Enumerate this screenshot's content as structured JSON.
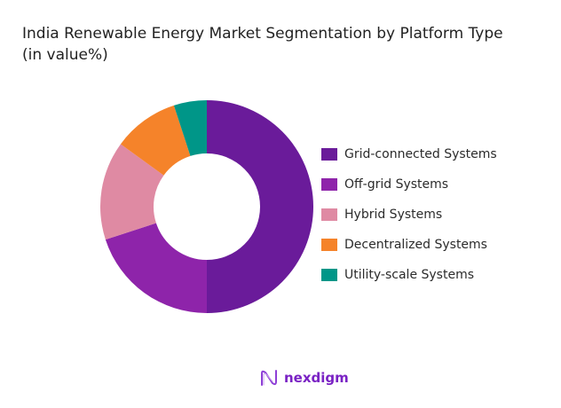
{
  "title": {
    "line1": "India Renewable Energy Market Segmentation by Platform Type",
    "line2": "(in value%)"
  },
  "chart_data": {
    "type": "pie",
    "variant": "donut",
    "title": "India Renewable Energy Market Segmentation by Platform Type (in value%)",
    "categories": [
      "Grid-connected Systems",
      "Off-grid Systems",
      "Hybrid Systems",
      "Decentralized Systems",
      "Utility-scale Systems"
    ],
    "values": [
      50,
      20,
      15,
      10,
      5
    ],
    "colors": [
      "#6a1b9a",
      "#8e24aa",
      "#df8aa3",
      "#f5832a",
      "#009688"
    ],
    "start_angle": "top, clockwise",
    "legend_position": "right"
  },
  "legend": {
    "items": [
      {
        "label": "Grid-connected Systems",
        "color": "#6a1b9a"
      },
      {
        "label": "Off-grid Systems",
        "color": "#8e24aa"
      },
      {
        "label": "Hybrid Systems",
        "color": "#df8aa3"
      },
      {
        "label": "Decentralized Systems",
        "color": "#f5832a"
      },
      {
        "label": "Utility-scale Systems",
        "color": "#009688"
      }
    ]
  },
  "brand": {
    "name": "nexdigm",
    "color": "#7a22c4"
  }
}
